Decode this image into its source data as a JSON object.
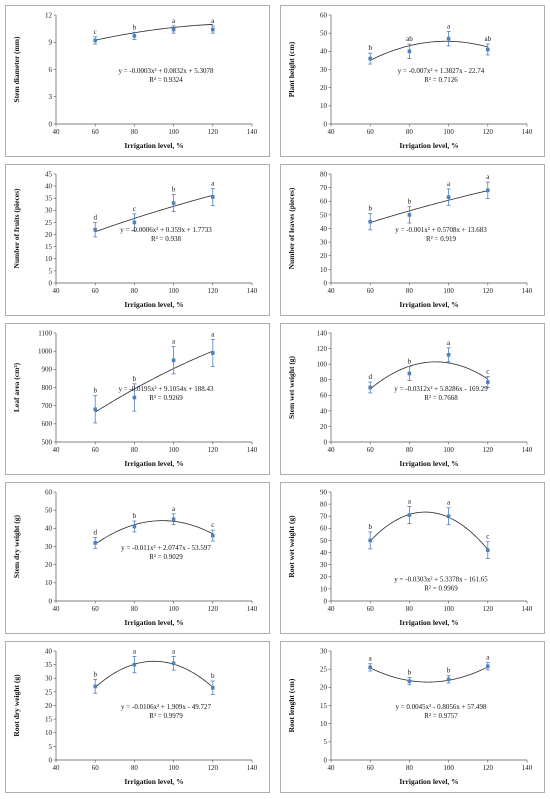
{
  "chart_data": [
    {
      "type": "scatter",
      "x": [
        60,
        80,
        100,
        120
      ],
      "values": [
        9.2,
        9.7,
        10.4,
        10.4
      ],
      "errors": [
        0.4,
        0.4,
        0.4,
        0.4
      ],
      "letters": [
        "c",
        "b",
        "a",
        "a"
      ],
      "ylabel": "Stem diameter (mm)",
      "xlabel": "Irrigation level, %",
      "xlim": [
        40,
        140
      ],
      "xticks": [
        40,
        60,
        80,
        100,
        120,
        140
      ],
      "ylim": [
        0,
        12
      ],
      "yticks": [
        0,
        3,
        6,
        9,
        12
      ],
      "equation": "y = -0.0003x² + 0.0832x + 5.3078",
      "r2": "R² = 0.9324",
      "fit": [
        -0.0003,
        0.0832,
        5.3078
      ],
      "eq_pos": "center"
    },
    {
      "type": "scatter",
      "x": [
        60,
        80,
        100,
        120
      ],
      "values": [
        36,
        40,
        47,
        41
      ],
      "errors": [
        3,
        4,
        4,
        3
      ],
      "letters": [
        "b",
        "ab",
        "a",
        "ab"
      ],
      "ylabel": "Plant height (cm)",
      "xlabel": "Irrigation level, %",
      "xlim": [
        40,
        140
      ],
      "xticks": [
        40,
        60,
        80,
        100,
        120,
        140
      ],
      "ylim": [
        0,
        60
      ],
      "yticks": [
        0,
        10,
        20,
        30,
        40,
        50,
        60
      ],
      "equation": "y = -0.007x² + 1.3827x - 22.74",
      "r2": "R² = 0.7126",
      "fit": [
        -0.007,
        1.3827,
        -22.74
      ],
      "eq_pos": "center"
    },
    {
      "type": "scatter",
      "x": [
        60,
        80,
        100,
        120
      ],
      "values": [
        22,
        25,
        33,
        35.5
      ],
      "errors": [
        3,
        3.5,
        3.5,
        3.5
      ],
      "letters": [
        "d",
        "c",
        "b",
        "a"
      ],
      "ylabel": "Number of fruits (pieces)",
      "xlabel": "Irrigation level, %",
      "xlim": [
        40,
        140
      ],
      "xticks": [
        40,
        60,
        80,
        100,
        120,
        140
      ],
      "ylim": [
        0,
        45
      ],
      "yticks": [
        0,
        5,
        10,
        15,
        20,
        25,
        30,
        35,
        40,
        45
      ],
      "equation": "y = -0.0006x² + 0.359x + 1.7733",
      "r2": "R² = 0.938",
      "fit": [
        -0.0006,
        0.359,
        1.7733
      ],
      "eq_pos": "center"
    },
    {
      "type": "scatter",
      "x": [
        60,
        80,
        100,
        120
      ],
      "values": [
        45,
        50,
        63,
        68
      ],
      "errors": [
        6,
        6,
        6,
        6
      ],
      "letters": [
        "b",
        "b",
        "a",
        "a"
      ],
      "ylabel": "Number of leaves (pieces)",
      "xlabel": "Irrigation level, %",
      "xlim": [
        40,
        140
      ],
      "xticks": [
        40,
        60,
        80,
        100,
        120,
        140
      ],
      "ylim": [
        0,
        80
      ],
      "yticks": [
        0,
        10,
        20,
        30,
        40,
        50,
        60,
        70,
        80
      ],
      "equation": "y = -0.001x² + 0.5708x + 13.683",
      "r2": "R² = 0.919",
      "fit": [
        -0.001,
        0.5708,
        13.683
      ],
      "eq_pos": "center"
    },
    {
      "type": "scatter",
      "x": [
        60,
        80,
        100,
        120
      ],
      "values": [
        680,
        745,
        950,
        990
      ],
      "errors": [
        75,
        75,
        75,
        75
      ],
      "letters": [
        "b",
        "b",
        "a",
        "a"
      ],
      "ylabel": "Leaf area (cm²)",
      "xlabel": "Irrigation level, %",
      "xlim": [
        40,
        140
      ],
      "xticks": [
        40,
        60,
        80,
        100,
        120,
        140
      ],
      "ylim": [
        500,
        1100
      ],
      "yticks": [
        500,
        600,
        700,
        800,
        900,
        1000,
        1100
      ],
      "equation": "y = -0.0195x² + 9.1054x + 188.43",
      "r2": "R² = 0.9269",
      "fit": [
        -0.0195,
        9.1054,
        188.43
      ],
      "eq_pos": "center"
    },
    {
      "type": "scatter",
      "x": [
        60,
        80,
        100,
        120
      ],
      "values": [
        70,
        88,
        112,
        77
      ],
      "errors": [
        7,
        9,
        9,
        7
      ],
      "letters": [
        "d",
        "b",
        "a",
        "c"
      ],
      "ylabel": "Stem wet weight (g)",
      "xlabel": "Irrigation level, %",
      "xlim": [
        40,
        140
      ],
      "xticks": [
        40,
        60,
        80,
        100,
        120,
        140
      ],
      "ylim": [
        0,
        140
      ],
      "yticks": [
        0,
        20,
        40,
        60,
        80,
        100,
        120,
        140
      ],
      "equation": "y = -0.0312x² + 5.8286x - 169.29",
      "r2": "R² = 0.7668",
      "fit": [
        -0.0312,
        5.8286,
        -169.29
      ],
      "eq_pos": "center"
    },
    {
      "type": "scatter",
      "x": [
        60,
        80,
        100,
        120
      ],
      "values": [
        32,
        41,
        45,
        36
      ],
      "errors": [
        3,
        3,
        3,
        3
      ],
      "letters": [
        "d",
        "b",
        "a",
        "c"
      ],
      "ylabel": "Stem dry weight (g)",
      "xlabel": "Irrigation level, %",
      "xlim": [
        40,
        140
      ],
      "xticks": [
        40,
        60,
        80,
        100,
        120,
        140
      ],
      "ylim": [
        0,
        60
      ],
      "yticks": [
        0,
        10,
        20,
        30,
        40,
        50,
        60
      ],
      "equation": "y = -0.011x² + 2.0747x - 53.597",
      "r2": "R² = 0.9029",
      "fit": [
        -0.011,
        2.0747,
        -53.597
      ],
      "eq_pos": "center"
    },
    {
      "type": "scatter",
      "x": [
        60,
        80,
        100,
        120
      ],
      "values": [
        50,
        71,
        70,
        42
      ],
      "errors": [
        7,
        7,
        7,
        7
      ],
      "letters": [
        "b",
        "a",
        "a",
        "c"
      ],
      "ylabel": "Root wet weight (g)",
      "xlabel": "Irrigation level, %",
      "xlim": [
        40,
        140
      ],
      "xticks": [
        40,
        60,
        80,
        100,
        120,
        140
      ],
      "ylim": [
        0,
        90
      ],
      "yticks": [
        0,
        10,
        20,
        30,
        40,
        50,
        60,
        70,
        80,
        90
      ],
      "equation": "y = -0.0303x² + 5.3378x - 161.65",
      "r2": "R² = 0.9969",
      "fit": [
        -0.0303,
        5.3378,
        -161.65
      ],
      "eq_pos": "low"
    },
    {
      "type": "scatter",
      "x": [
        60,
        80,
        100,
        120
      ],
      "values": [
        27,
        35,
        35.5,
        26.5
      ],
      "errors": [
        2.5,
        3,
        2.5,
        2.5
      ],
      "letters": [
        "b",
        "a",
        "a",
        "b"
      ],
      "ylabel": "Root dry weight (g)",
      "xlabel": "Irrigation level, %",
      "xlim": [
        40,
        140
      ],
      "xticks": [
        40,
        60,
        80,
        100,
        120,
        140
      ],
      "ylim": [
        0,
        40
      ],
      "yticks": [
        0,
        5,
        10,
        15,
        20,
        25,
        30,
        35,
        40
      ],
      "equation": "y = -0.0106x² + 1.909x - 49.727",
      "r2": "R² = 0.9979",
      "fit": [
        -0.0106,
        1.909,
        -49.727
      ],
      "eq_pos": "center"
    },
    {
      "type": "scatter",
      "x": [
        60,
        80,
        100,
        120
      ],
      "values": [
        25.5,
        21.7,
        22.2,
        25.8
      ],
      "errors": [
        1,
        1,
        1,
        1
      ],
      "letters": [
        "a",
        "b",
        "b",
        "a"
      ],
      "ylabel": "Root lenght (cm)",
      "xlabel": "Irrigation level, %",
      "xlim": [
        40,
        140
      ],
      "xticks": [
        40,
        60,
        80,
        100,
        120,
        140
      ],
      "ylim": [
        0,
        30
      ],
      "yticks": [
        0,
        5,
        10,
        15,
        20,
        25,
        30
      ],
      "equation": "y = 0.0045x² - 0.8056x + 57.498",
      "r2": "R² = 0.9757",
      "fit": [
        0.0045,
        -0.8056,
        57.498
      ],
      "eq_pos": "center"
    }
  ],
  "colors": {
    "marker": "#4f81bd",
    "curve": "#2a2a2a",
    "frame": "#9a9a9a",
    "axis": "#555555"
  }
}
